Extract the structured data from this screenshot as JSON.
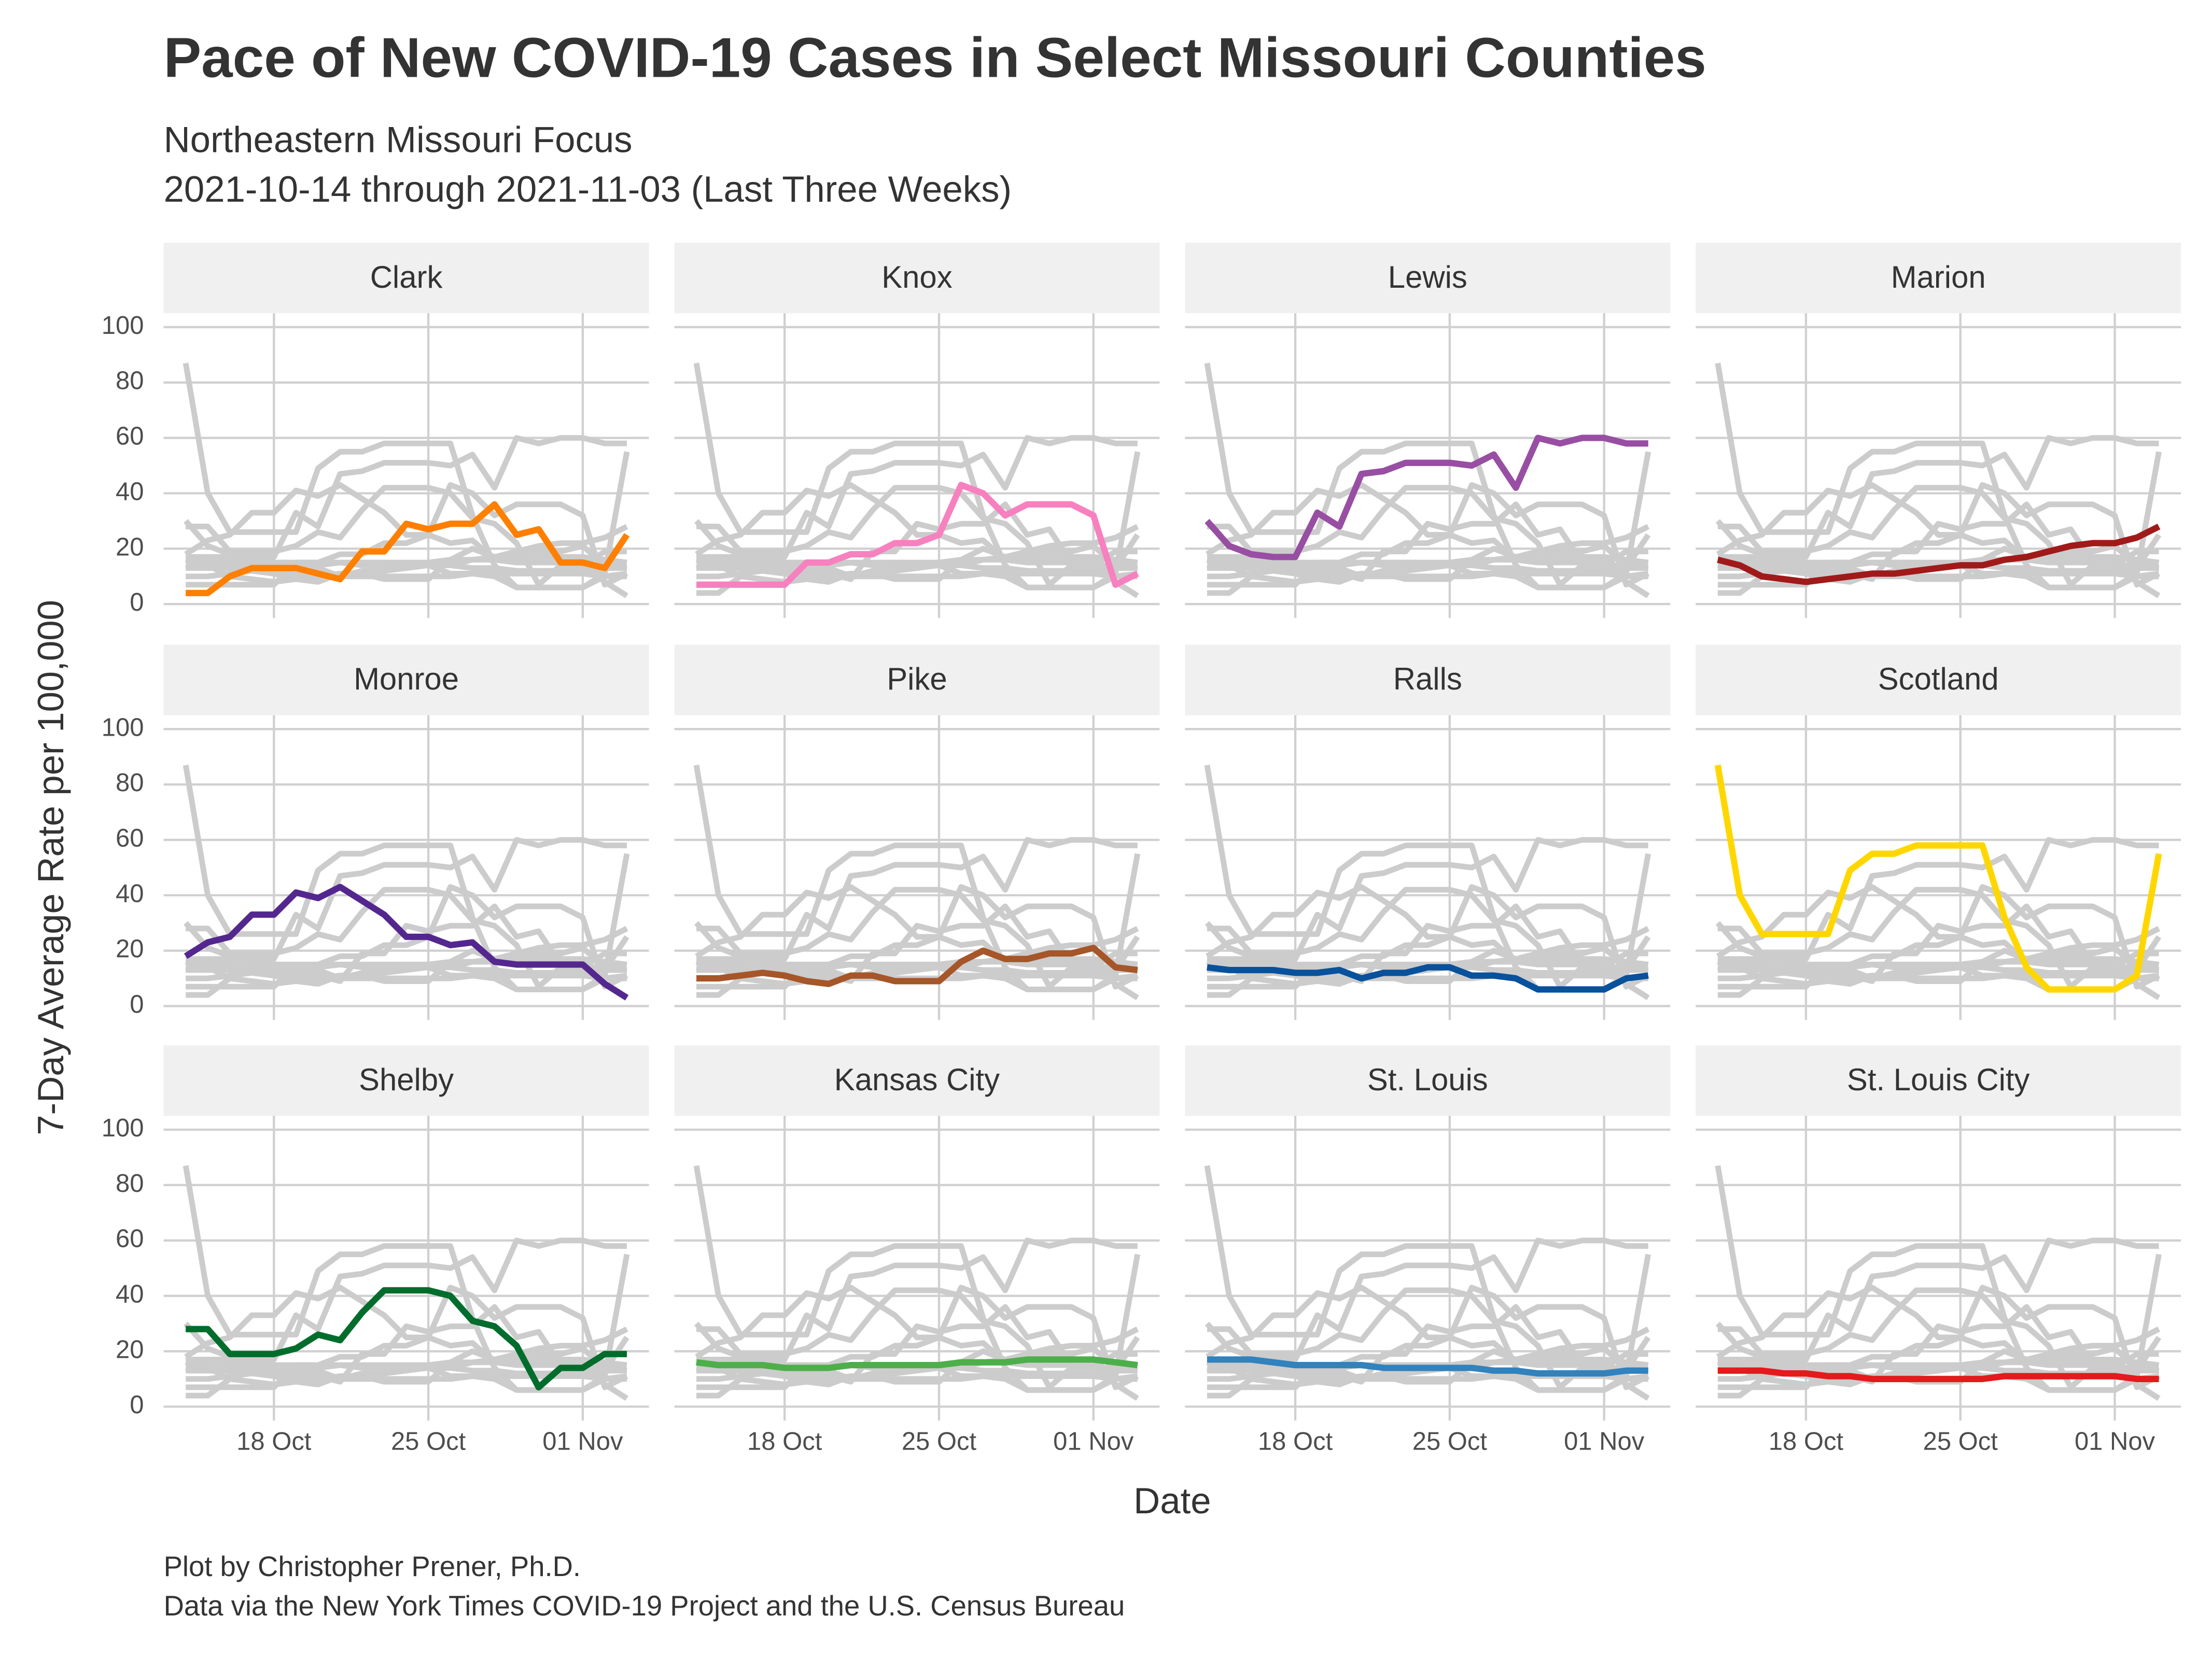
{
  "chart_data": {
    "type": "line",
    "title": "Pace of New COVID-19 Cases in Select Missouri Counties",
    "subtitle": [
      "Northeastern Missouri Focus",
      "2021-10-14 through 2021-11-03 (Last Three Weeks)"
    ],
    "xlabel": "Date",
    "ylabel": "7-Day Average Rate per 100,000",
    "caption": [
      "Plot by Christopher Prener, Ph.D.",
      "Data via the New York Times COVID-19 Project and the U.S. Census Bureau"
    ],
    "x": [
      "2021-10-14",
      "2021-10-15",
      "2021-10-16",
      "2021-10-17",
      "2021-10-18",
      "2021-10-19",
      "2021-10-20",
      "2021-10-21",
      "2021-10-22",
      "2021-10-23",
      "2021-10-24",
      "2021-10-25",
      "2021-10-26",
      "2021-10-27",
      "2021-10-28",
      "2021-10-29",
      "2021-10-30",
      "2021-10-31",
      "2021-11-01",
      "2021-11-02",
      "2021-11-03"
    ],
    "xlim": [
      "2021-10-13",
      "2021-11-04"
    ],
    "xticks": [
      {
        "value": "2021-10-18",
        "label": "18 Oct"
      },
      {
        "value": "2021-10-25",
        "label": "25 Oct"
      },
      {
        "value": "2021-11-01",
        "label": "01 Nov"
      }
    ],
    "ylim": [
      -5,
      105
    ],
    "yticks": [
      0,
      20,
      40,
      60,
      80,
      100
    ],
    "grid": true,
    "columns": 4,
    "context_color": "#cccccc",
    "series": [
      {
        "name": "Clark",
        "color": "#ff7f00",
        "values": [
          4,
          4,
          10,
          13,
          13,
          13,
          11,
          9,
          19,
          19,
          29,
          27,
          29,
          29,
          36,
          25,
          27,
          15,
          15,
          13,
          25
        ]
      },
      {
        "name": "Knox",
        "color": "#f781bf",
        "values": [
          7,
          7,
          7,
          7,
          7,
          15,
          15,
          18,
          18,
          22,
          22,
          25,
          43,
          40,
          32,
          36,
          36,
          36,
          32,
          7,
          11
        ]
      },
      {
        "name": "Lewis",
        "color": "#984ea3",
        "values": [
          30,
          21,
          18,
          17,
          17,
          33,
          28,
          47,
          48,
          51,
          51,
          51,
          50,
          54,
          42,
          60,
          58,
          60,
          60,
          58,
          58
        ]
      },
      {
        "name": "Marion",
        "color": "#a11a1a",
        "values": [
          16,
          14,
          10,
          9,
          8,
          9,
          10,
          11,
          11,
          12,
          13,
          14,
          14,
          16,
          17,
          19,
          21,
          22,
          22,
          24,
          28
        ]
      },
      {
        "name": "Monroe",
        "color": "#54278f",
        "values": [
          18,
          23,
          25,
          33,
          33,
          41,
          39,
          43,
          38,
          33,
          25,
          25,
          22,
          23,
          16,
          15,
          15,
          15,
          15,
          8,
          3
        ]
      },
      {
        "name": "Pike",
        "color": "#a65628",
        "values": [
          10,
          10,
          11,
          12,
          11,
          9,
          8,
          11,
          11,
          9,
          9,
          9,
          16,
          20,
          17,
          17,
          19,
          19,
          21,
          14,
          13
        ]
      },
      {
        "name": "Ralls",
        "color": "#08519c",
        "values": [
          14,
          13,
          13,
          13,
          12,
          12,
          13,
          10,
          12,
          12,
          14,
          14,
          11,
          11,
          10,
          6,
          6,
          6,
          6,
          10,
          11
        ]
      },
      {
        "name": "Scotland",
        "color": "#ffd700",
        "values": [
          87,
          40,
          26,
          26,
          26,
          26,
          49,
          55,
          55,
          58,
          58,
          58,
          58,
          32,
          14,
          6,
          6,
          6,
          6,
          11,
          55
        ]
      },
      {
        "name": "Shelby",
        "color": "#006d2c",
        "values": [
          28,
          28,
          19,
          19,
          19,
          21,
          26,
          24,
          34,
          42,
          42,
          42,
          40,
          31,
          29,
          22,
          7,
          14,
          14,
          19,
          19
        ]
      },
      {
        "name": "Kansas City",
        "color": "#4daf4a",
        "values": [
          16,
          15,
          15,
          15,
          14,
          14,
          14,
          15,
          15,
          15,
          15,
          15,
          16,
          16,
          16,
          17,
          17,
          17,
          17,
          16,
          15
        ]
      },
      {
        "name": "St. Louis",
        "color": "#3182bd",
        "values": [
          17,
          17,
          17,
          16,
          15,
          15,
          15,
          15,
          14,
          14,
          14,
          14,
          14,
          13,
          13,
          12,
          12,
          12,
          12,
          13,
          13
        ]
      },
      {
        "name": "St. Louis City",
        "color": "#e41a1c",
        "values": [
          13,
          13,
          13,
          12,
          12,
          11,
          11,
          10,
          10,
          10,
          10,
          10,
          10,
          11,
          11,
          11,
          11,
          11,
          11,
          10,
          10
        ]
      }
    ]
  }
}
